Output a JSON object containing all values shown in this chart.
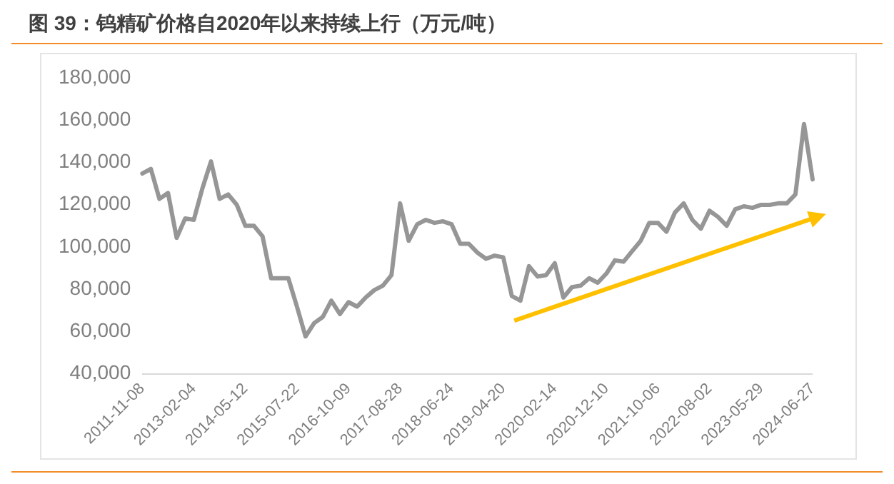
{
  "chart_data": {
    "type": "line",
    "title": "图 39：钨精矿价格自2020年以来持续上行（万元/吨）",
    "categories": [
      "2011-11-08",
      null,
      null,
      null,
      null,
      null,
      "2013-02-04",
      null,
      null,
      null,
      null,
      null,
      "2014-05-12",
      null,
      null,
      null,
      null,
      null,
      "2015-07-22",
      null,
      null,
      null,
      null,
      null,
      "2016-10-09",
      null,
      null,
      null,
      null,
      null,
      "2017-08-28",
      null,
      null,
      null,
      null,
      null,
      "2018-06-24",
      null,
      null,
      null,
      null,
      null,
      "2019-04-20",
      null,
      null,
      null,
      null,
      null,
      "2020-02-14",
      null,
      null,
      null,
      null,
      null,
      "2020-12-10",
      null,
      null,
      null,
      null,
      null,
      "2021-10-06",
      null,
      null,
      null,
      null,
      null,
      "2022-08-02",
      null,
      null,
      null,
      null,
      null,
      "2023-05-29",
      null,
      null,
      null,
      null,
      null,
      "2024-06-27"
    ],
    "series": [
      {
        "color": "#969696",
        "values": [
          134700,
          136900,
          122700,
          125500,
          104300,
          113500,
          112800,
          127700,
          140400,
          122700,
          124800,
          119900,
          110000,
          110000,
          105000,
          85200,
          85200,
          85200,
          71800,
          57700,
          64000,
          66900,
          74600,
          68300,
          73900,
          71800,
          76100,
          79600,
          81700,
          86700,
          120600,
          102900,
          110700,
          112800,
          111400,
          112100,
          110700,
          101500,
          101500,
          97300,
          94400,
          95900,
          95100,
          76800,
          74600,
          90900,
          86000,
          86700,
          92300,
          76100,
          81000,
          81700,
          85200,
          83100,
          87400,
          93700,
          93000,
          98000,
          102900,
          111400,
          111400,
          107200,
          116400,
          120600,
          112800,
          108600,
          117100,
          114200,
          110000,
          117800,
          119200,
          118500,
          119900,
          119900,
          120600,
          120600,
          124800,
          158100,
          131900
        ]
      }
    ],
    "ylim": [
      40000,
      180000
    ],
    "yticks": [
      {
        "value": 40000,
        "label": "40,000"
      },
      {
        "value": 60000,
        "label": "60,000"
      },
      {
        "value": 80000,
        "label": "80,000"
      },
      {
        "value": 100000,
        "label": "100,000"
      },
      {
        "value": 120000,
        "label": "120,000"
      },
      {
        "value": 140000,
        "label": "140,000"
      },
      {
        "value": 160000,
        "label": "160,000"
      },
      {
        "value": 180000,
        "label": "180,000"
      }
    ],
    "grid": false,
    "legend": false,
    "marker": "none",
    "line_style": "solid"
  }
}
